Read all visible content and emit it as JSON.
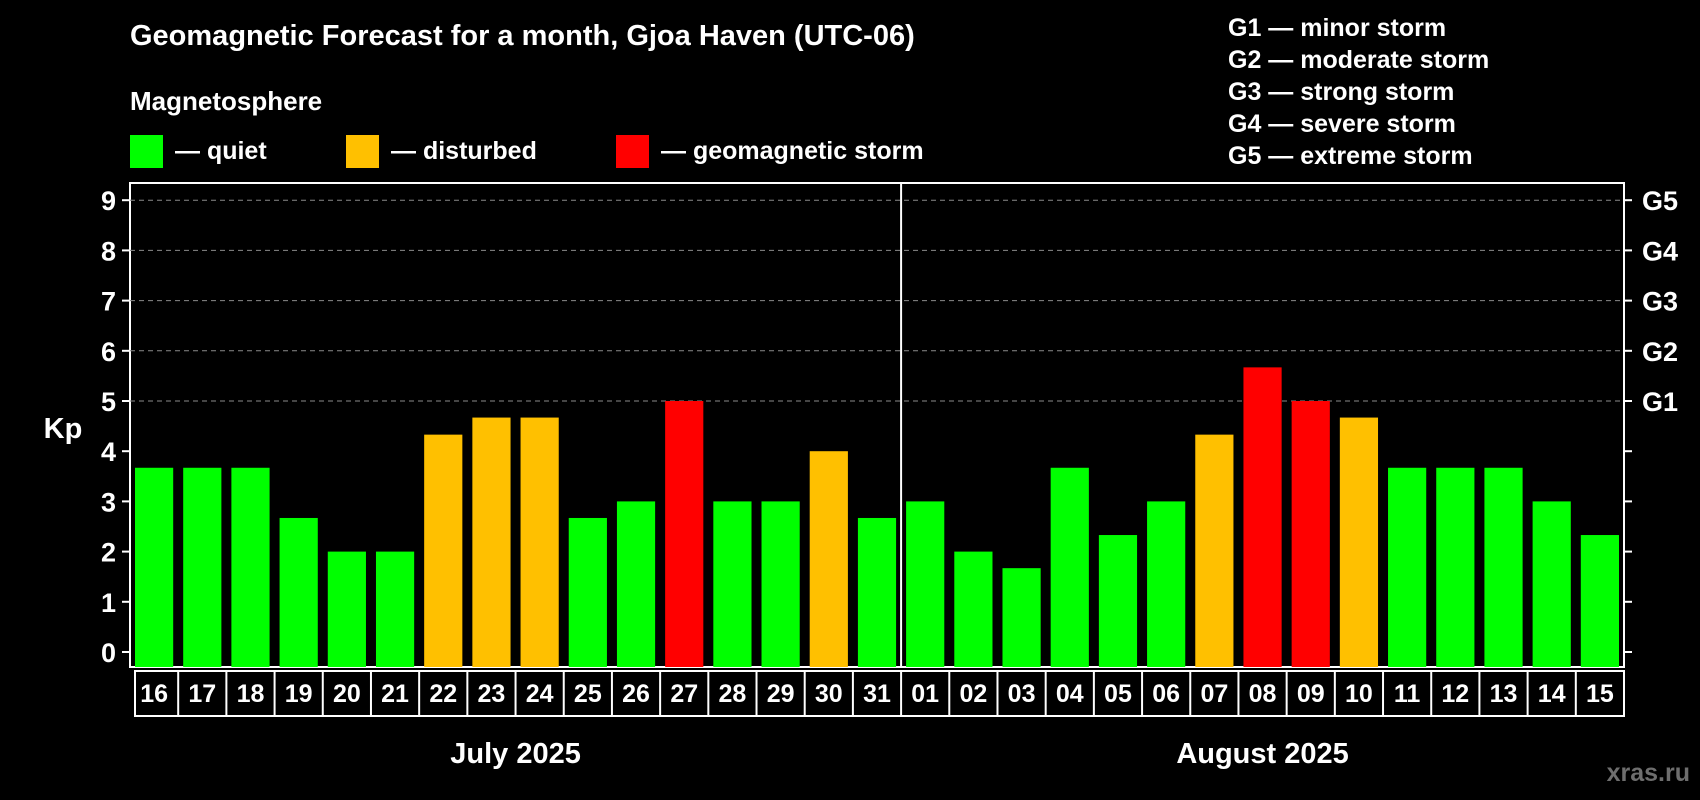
{
  "title": "Geomagnetic Forecast for a month, Gjoa Haven (UTC-06)",
  "subtitle": "Magnetosphere",
  "legend": [
    {
      "label": "— quiet",
      "color": "#00ff00"
    },
    {
      "label": "— disturbed",
      "color": "#ffc000"
    },
    {
      "label": "— geomagnetic storm",
      "color": "#ff0000"
    }
  ],
  "storm_scale": [
    "G1 — minor storm",
    "G2 — moderate storm",
    "G3 — strong storm",
    "G4 — severe storm",
    "G5 — extreme storm"
  ],
  "watermark": "xras.ru",
  "chart_data": {
    "type": "bar",
    "title": "Geomagnetic Forecast for a month, Gjoa Haven (UTC-06)",
    "ylabel": "Kp",
    "ylim": [
      0,
      9
    ],
    "yticks": [
      0,
      1,
      2,
      3,
      4,
      5,
      6,
      7,
      8,
      9
    ],
    "g_levels": [
      {
        "kp": 5,
        "label": "G1"
      },
      {
        "kp": 6,
        "label": "G2"
      },
      {
        "kp": 7,
        "label": "G3"
      },
      {
        "kp": 8,
        "label": "G4"
      },
      {
        "kp": 9,
        "label": "G5"
      }
    ],
    "categories": [
      "16",
      "17",
      "18",
      "19",
      "20",
      "21",
      "22",
      "23",
      "24",
      "25",
      "26",
      "27",
      "28",
      "29",
      "30",
      "31",
      "01",
      "02",
      "03",
      "04",
      "05",
      "06",
      "07",
      "08",
      "09",
      "10",
      "11",
      "12",
      "13",
      "14",
      "15"
    ],
    "values": [
      3.67,
      3.67,
      3.67,
      2.67,
      2.0,
      2.0,
      4.33,
      4.67,
      4.67,
      2.67,
      3.0,
      5.0,
      3.0,
      3.0,
      4.0,
      2.67,
      3.0,
      2.0,
      1.67,
      3.67,
      2.33,
      3.0,
      4.33,
      5.67,
      5.0,
      4.67,
      3.67,
      3.67,
      3.67,
      3.0,
      2.33
    ],
    "status": [
      "quiet",
      "quiet",
      "quiet",
      "quiet",
      "quiet",
      "quiet",
      "disturbed",
      "disturbed",
      "disturbed",
      "quiet",
      "quiet",
      "storm",
      "quiet",
      "quiet",
      "disturbed",
      "quiet",
      "quiet",
      "quiet",
      "quiet",
      "quiet",
      "quiet",
      "quiet",
      "disturbed",
      "storm",
      "storm",
      "disturbed",
      "quiet",
      "quiet",
      "quiet",
      "quiet",
      "quiet"
    ],
    "colors": {
      "quiet": "#00ff00",
      "disturbed": "#ffc000",
      "storm": "#ff0000"
    },
    "months": [
      {
        "label": "July 2025",
        "start": 0,
        "count": 16
      },
      {
        "label": "August 2025",
        "start": 16,
        "count": 15
      }
    ]
  }
}
